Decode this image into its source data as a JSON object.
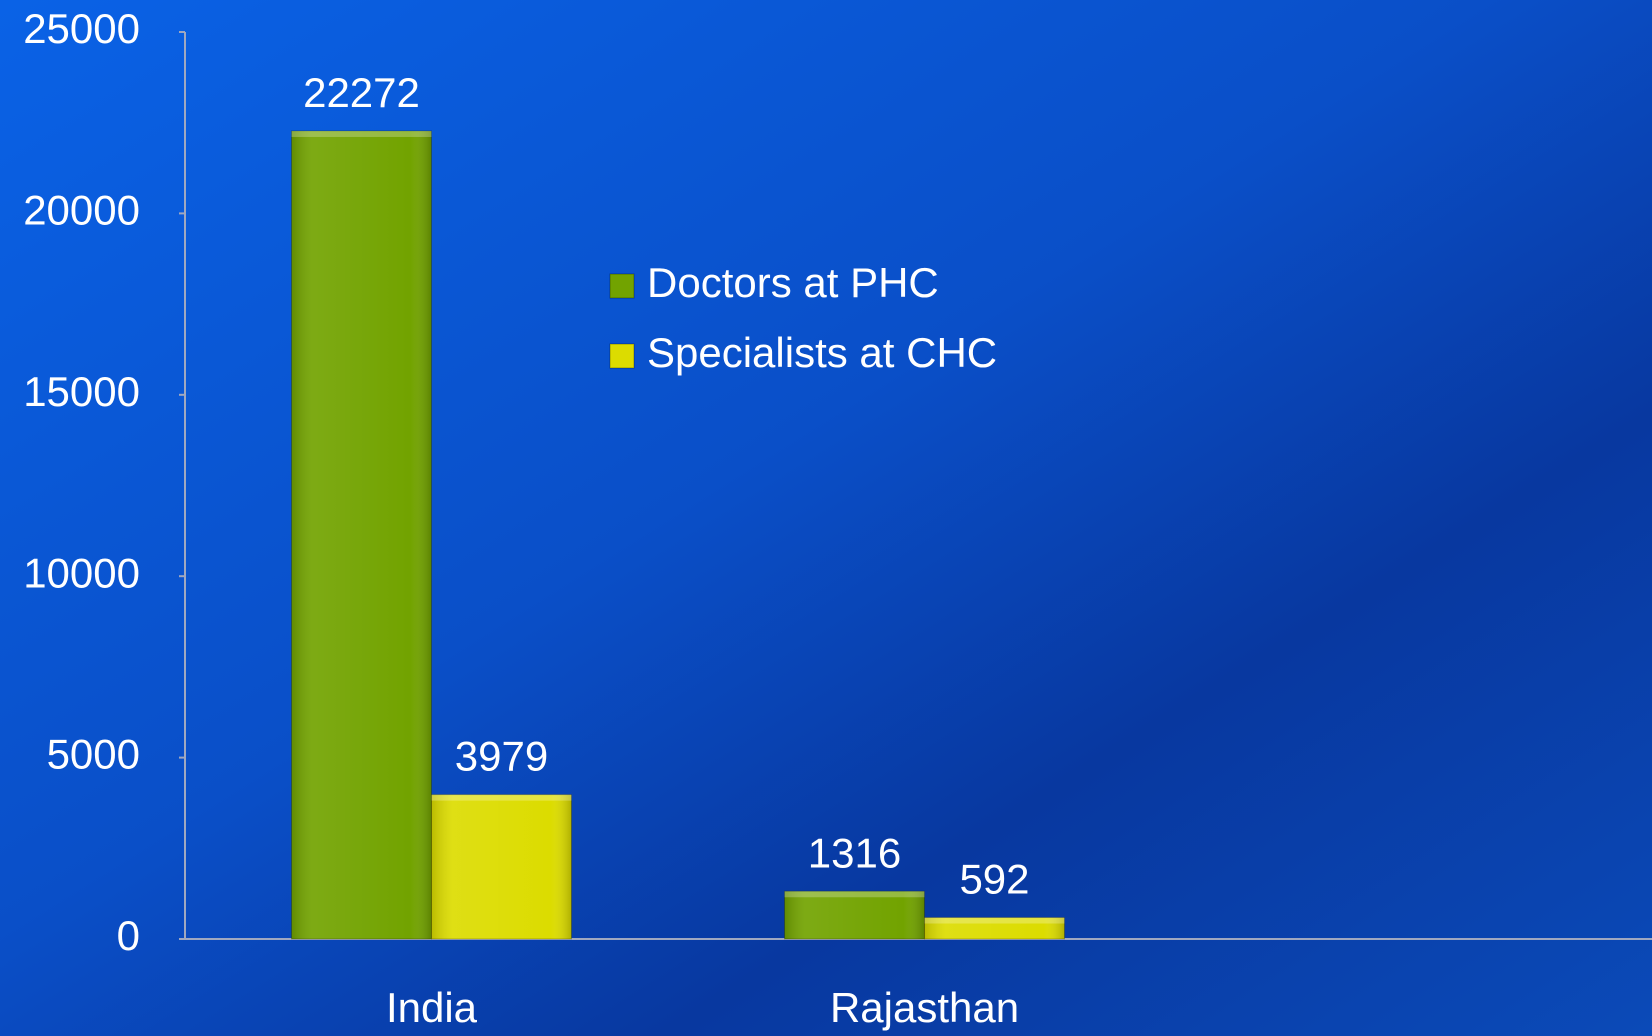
{
  "chart_data": {
    "type": "bar",
    "categories": [
      "India",
      "Rajasthan"
    ],
    "series": [
      {
        "name": "Doctors at PHC",
        "color": "#72a300",
        "values": [
          22272,
          1316
        ]
      },
      {
        "name": "Specialists at CHC",
        "color": "#dcdc00",
        "values": [
          3979,
          592
        ]
      }
    ],
    "ylim": [
      0,
      25000
    ],
    "yticks": [
      0,
      5000,
      10000,
      15000,
      20000,
      25000
    ],
    "grid": false,
    "legend": "top-center"
  }
}
